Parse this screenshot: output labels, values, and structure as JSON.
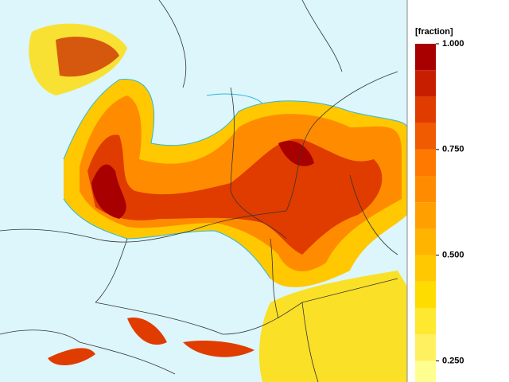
{
  "legend": {
    "unit_label": "[fraction]",
    "lim": [
      0.2,
      1.0
    ],
    "levels": [
      0.1875,
      0.25,
      0.3125,
      0.375,
      0.4375,
      0.5,
      0.5625,
      0.625,
      0.6875,
      0.75,
      0.8125,
      0.875,
      0.9375,
      1.0
    ],
    "colors": [
      "#ffff90",
      "#fff060",
      "#ffe830",
      "#ffdc00",
      "#ffc800",
      "#ffb400",
      "#ffa000",
      "#ff8c00",
      "#ff7800",
      "#f05a00",
      "#e03c00",
      "#c81e00",
      "#a80000"
    ],
    "ticks": [
      {
        "value": 1.0,
        "label": "1.000"
      },
      {
        "value": 0.75,
        "label": "0.750"
      },
      {
        "value": 0.5,
        "label": "0.500"
      },
      {
        "value": 0.25,
        "label": "0.250"
      }
    ]
  }
}
